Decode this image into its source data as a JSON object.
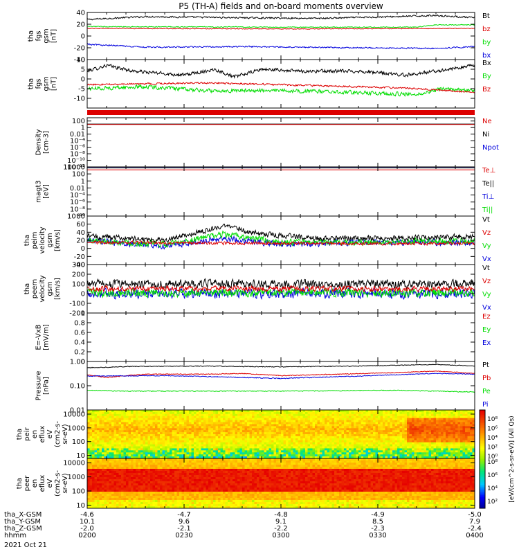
{
  "title": "P5 (TH-A) fields and on-board moments overview",
  "date_label": "2021 Oct 21",
  "colors": {
    "black": "#000000",
    "red": "#dd0000",
    "green": "#00dd00",
    "blue": "#0000dd"
  },
  "chart_data": [
    {
      "type": "line",
      "ylabel": [
        "tha",
        "fgs",
        "gsm",
        "[nT]"
      ],
      "ylim": [
        -40,
        40
      ],
      "yticks": [
        -40,
        -20,
        0,
        20,
        40
      ],
      "legend": [
        {
          "label": "Bt",
          "color": "black"
        },
        {
          "label": "bz",
          "color": "red"
        },
        {
          "label": "by",
          "color": "green"
        },
        {
          "label": "bx",
          "color": "blue"
        }
      ],
      "series": [
        {
          "color": "black",
          "anchors": [
            [
              0,
              28
            ],
            [
              0.15,
              33
            ],
            [
              0.4,
              31
            ],
            [
              0.6,
              30
            ],
            [
              0.8,
              33
            ],
            [
              0.9,
              35
            ],
            [
              1,
              31
            ]
          ],
          "noise": 1.2
        },
        {
          "color": "red",
          "anchors": [
            [
              0,
              13
            ],
            [
              0.5,
              12
            ],
            [
              1,
              13
            ]
          ],
          "noise": 0.5
        },
        {
          "color": "green",
          "anchors": [
            [
              0,
              16
            ],
            [
              0.5,
              15
            ],
            [
              0.85,
              15
            ],
            [
              0.9,
              19
            ],
            [
              1,
              19
            ]
          ],
          "noise": 0.7
        },
        {
          "color": "blue",
          "anchors": [
            [
              0,
              -14
            ],
            [
              0.15,
              -19
            ],
            [
              0.4,
              -18
            ],
            [
              0.7,
              -20
            ],
            [
              0.9,
              -21
            ],
            [
              1,
              -18
            ]
          ],
          "noise": 1.0
        }
      ]
    },
    {
      "type": "line",
      "ylabel": [
        "tha",
        "fgs",
        "gsm",
        "[nT]"
      ],
      "ylim": [
        -15,
        10
      ],
      "yticks": [
        -10,
        -5,
        0,
        5,
        10
      ],
      "legend": [
        {
          "label": "Bx",
          "color": "black"
        },
        {
          "label": "By",
          "color": "green"
        },
        {
          "label": "Bz",
          "color": "red"
        }
      ],
      "series": [
        {
          "color": "black",
          "anchors": [
            [
              0,
              4
            ],
            [
              0.05,
              7
            ],
            [
              0.12,
              4
            ],
            [
              0.25,
              2
            ],
            [
              0.33,
              5
            ],
            [
              0.38,
              1
            ],
            [
              0.45,
              5
            ],
            [
              0.55,
              4
            ],
            [
              0.7,
              4
            ],
            [
              0.82,
              2
            ],
            [
              0.9,
              4
            ],
            [
              1,
              7
            ]
          ],
          "noise": 0.8
        },
        {
          "color": "green",
          "anchors": [
            [
              0,
              -5
            ],
            [
              0.15,
              -4
            ],
            [
              0.3,
              -6
            ],
            [
              0.5,
              -6
            ],
            [
              0.7,
              -7
            ],
            [
              0.85,
              -8
            ],
            [
              0.92,
              -5
            ],
            [
              1,
              -6
            ]
          ],
          "noise": 0.9
        },
        {
          "color": "red",
          "anchors": [
            [
              0,
              -3
            ],
            [
              0.3,
              -2
            ],
            [
              0.5,
              -3
            ],
            [
              0.7,
              -4
            ],
            [
              0.85,
              -5
            ],
            [
              1,
              -7
            ]
          ],
          "noise": 0.4
        }
      ]
    },
    {
      "type": "line",
      "ylabel": [
        "Density",
        "[cm-3]"
      ],
      "ylog": true,
      "ylim": [
        1e-12,
        1000
      ],
      "yticks": [
        1e-12,
        1e-10,
        1e-08,
        1e-06,
        0.0001,
        0.01,
        1,
        100
      ],
      "legend": [
        {
          "label": "Ne",
          "color": "red"
        },
        {
          "label": "Ni",
          "color": "black"
        },
        {
          "label": "Npot",
          "color": "blue"
        }
      ],
      "series": [
        {
          "color": "black",
          "anchors": [
            [
              0,
              12
            ],
            [
              1,
              12
            ]
          ],
          "noise": 0.1
        },
        {
          "color": "red",
          "anchors": [
            [
              0,
              9
            ],
            [
              1,
              9
            ]
          ],
          "noise": 0.1
        },
        {
          "color": "blue",
          "anchors": [
            [
              0,
              1e-12
            ],
            [
              1,
              1e-12
            ]
          ],
          "noise": 0
        }
      ]
    },
    {
      "type": "line",
      "ylabel": [
        "magt3",
        "[eV]"
      ],
      "ylog": true,
      "ylim": [
        1e-10,
        10000.0
      ],
      "yticks": [
        1e-10,
        1e-08,
        1e-06,
        0.0001,
        0.01,
        1,
        100,
        10000.0
      ],
      "legend": [
        {
          "label": "Te⊥",
          "color": "red"
        },
        {
          "label": "Te||",
          "color": "black"
        },
        {
          "label": "Ti⊥",
          "color": "blue"
        },
        {
          "label": "Ti||",
          "color": "green"
        }
      ],
      "series": [
        {
          "color": "black",
          "anchors": [
            [
              0,
              5000
            ],
            [
              1,
              5000
            ]
          ],
          "noise": 0
        },
        {
          "color": "red",
          "anchors": [
            [
              0,
              1500
            ],
            [
              1,
              1500
            ]
          ],
          "noise": 0
        },
        {
          "color": "blue",
          "anchors": [
            [
              0,
              9000
            ],
            [
              1,
              9000
            ]
          ],
          "noise": 0
        }
      ]
    },
    {
      "type": "line",
      "ylabel": [
        "tha",
        "peim",
        "velocity",
        "gsm",
        "[km/s]"
      ],
      "ylim": [
        -40,
        80
      ],
      "yticks": [
        -40,
        -20,
        0,
        20,
        40,
        60,
        80
      ],
      "legend": [
        {
          "label": "Vt",
          "color": "black"
        },
        {
          "label": "Vz",
          "color": "red"
        },
        {
          "label": "Vy",
          "color": "green"
        },
        {
          "label": "Vx",
          "color": "blue"
        }
      ],
      "series": [
        {
          "color": "blue",
          "anchors": [
            [
              0,
              20
            ],
            [
              0.2,
              5
            ],
            [
              0.35,
              25
            ],
            [
              0.5,
              10
            ],
            [
              0.7,
              15
            ],
            [
              1,
              15
            ]
          ],
          "noise": 7
        },
        {
          "color": "green",
          "anchors": [
            [
              0,
              20
            ],
            [
              0.2,
              10
            ],
            [
              0.35,
              35
            ],
            [
              0.5,
              15
            ],
            [
              0.7,
              15
            ],
            [
              1,
              20
            ]
          ],
          "noise": 7
        },
        {
          "color": "black",
          "anchors": [
            [
              0,
              30
            ],
            [
              0.2,
              20
            ],
            [
              0.35,
              55
            ],
            [
              0.45,
              35
            ],
            [
              0.6,
              25
            ],
            [
              0.8,
              25
            ],
            [
              1,
              30
            ]
          ],
          "noise": 6
        },
        {
          "color": "red",
          "anchors": [
            [
              0,
              15
            ],
            [
              0.5,
              12
            ],
            [
              1,
              12
            ]
          ],
          "noise": 3.5
        }
      ]
    },
    {
      "type": "line",
      "ylabel": [
        "tha",
        "peem",
        "velocity",
        "gsm",
        "[km/s]"
      ],
      "ylim": [
        -200,
        300
      ],
      "yticks": [
        -200,
        -100,
        0,
        100,
        200,
        300
      ],
      "legend": [
        {
          "label": "Vt",
          "color": "black"
        },
        {
          "label": "Vz",
          "color": "red"
        },
        {
          "label": "Vy",
          "color": "green"
        },
        {
          "label": "Vx",
          "color": "blue"
        }
      ],
      "series": [
        {
          "color": "blue",
          "anchors": [
            [
              0,
              0
            ],
            [
              1,
              0
            ]
          ],
          "noise": 45
        },
        {
          "color": "green",
          "anchors": [
            [
              0,
              10
            ],
            [
              1,
              10
            ]
          ],
          "noise": 40
        },
        {
          "color": "black",
          "anchors": [
            [
              0,
              100
            ],
            [
              1,
              100
            ]
          ],
          "noise": 40
        },
        {
          "color": "red",
          "anchors": [
            [
              0,
              50
            ],
            [
              1,
              50
            ]
          ],
          "noise": 25
        }
      ]
    },
    {
      "type": "line",
      "ylabel": [
        "E=-VxB",
        "[mV/m]"
      ],
      "ylim": [
        0,
        1
      ],
      "yticks": [
        0,
        0.2,
        0.4,
        0.6,
        0.8,
        1.0
      ],
      "legend": [
        {
          "label": "Ez",
          "color": "red"
        },
        {
          "label": "Ey",
          "color": "green"
        },
        {
          "label": "Ex",
          "color": "blue"
        }
      ],
      "series": []
    },
    {
      "type": "line",
      "ylabel": [
        "Pressure",
        "[nPa]"
      ],
      "ylog": true,
      "ylim": [
        0.01,
        1
      ],
      "yticks": [
        0.01,
        0.1,
        1
      ],
      "yticklabels": [
        "0.01",
        "0.10",
        "1.00"
      ],
      "legend": [
        {
          "label": "Pt",
          "color": "black"
        },
        {
          "label": "Pb",
          "color": "red"
        },
        {
          "label": "Pe",
          "color": "green"
        },
        {
          "label": "Pi",
          "color": "blue"
        }
      ],
      "series": [
        {
          "color": "black",
          "anchors": [
            [
              0,
              0.55
            ],
            [
              0.1,
              0.62
            ],
            [
              0.3,
              0.65
            ],
            [
              0.5,
              0.6
            ],
            [
              0.7,
              0.65
            ],
            [
              0.9,
              0.75
            ],
            [
              1,
              0.65
            ]
          ],
          "noise": 0.02
        },
        {
          "color": "red",
          "anchors": [
            [
              0,
              0.28
            ],
            [
              0.05,
              0.22
            ],
            [
              0.15,
              0.3
            ],
            [
              0.3,
              0.3
            ],
            [
              0.4,
              0.32
            ],
            [
              0.5,
              0.26
            ],
            [
              0.65,
              0.3
            ],
            [
              0.8,
              0.35
            ],
            [
              0.9,
              0.4
            ],
            [
              1,
              0.32
            ]
          ],
          "noise": 0.01
        },
        {
          "color": "blue",
          "anchors": [
            [
              0,
              0.25
            ],
            [
              0.2,
              0.26
            ],
            [
              0.5,
              0.2
            ],
            [
              0.7,
              0.25
            ],
            [
              0.9,
              0.32
            ],
            [
              1,
              0.3
            ]
          ],
          "noise": 0.008
        },
        {
          "color": "green",
          "anchors": [
            [
              0,
              0.065
            ],
            [
              0.1,
              0.06
            ],
            [
              0.5,
              0.06
            ],
            [
              0.8,
              0.065
            ],
            [
              1,
              0.055
            ]
          ],
          "noise": 0.002
        }
      ]
    },
    {
      "type": "heatmap",
      "ylabel": [
        "tha",
        "peir",
        "en",
        "eflux",
        "eV",
        "(cm2-s-",
        "sr-eV)"
      ],
      "ylog": true,
      "ylim": [
        6,
        20000
      ],
      "yticks": [
        10,
        100,
        1000,
        10000
      ]
    },
    {
      "type": "heatmap",
      "ylabel": [
        "tha",
        "peer",
        "en",
        "eflux",
        "eV",
        "(cm2-s-",
        "sr-eV)"
      ],
      "ylog": true,
      "ylim": [
        6,
        20000
      ],
      "yticks": [
        10,
        100,
        1000,
        10000
      ]
    }
  ],
  "colorbar_label": "[eV/(cm^2-s-sr-eV)] (All Qs)",
  "colorbar_ticks_upper": [
    "10⁸",
    "10⁶",
    "10⁴",
    "10²",
    "10⁰"
  ],
  "colorbar_ticks_lower": [
    "10⁸",
    "10⁶",
    "10⁴",
    "10²"
  ],
  "x_axis": {
    "ticks": [
      {
        "frac": 0,
        "x": "-4.6",
        "y": "10.1",
        "z": "-2.0",
        "hhmm": "0200"
      },
      {
        "frac": 0.25,
        "x": "-4.7",
        "y": "9.6",
        "z": "-2.1",
        "hhmm": "0230"
      },
      {
        "frac": 0.5,
        "x": "-4.8",
        "y": "9.1",
        "z": "-2.2",
        "hhmm": "0300"
      },
      {
        "frac": 0.75,
        "x": "-4.9",
        "y": "8.5",
        "z": "-2.3",
        "hhmm": "0330"
      },
      {
        "frac": 1,
        "x": "-5.0",
        "y": "7.9",
        "z": "-2.4",
        "hhmm": "0400"
      }
    ],
    "row_labels": [
      "tha_X-GSM",
      "tha_Y-GSM",
      "tha_Z-GSM",
      "hhmm"
    ]
  }
}
